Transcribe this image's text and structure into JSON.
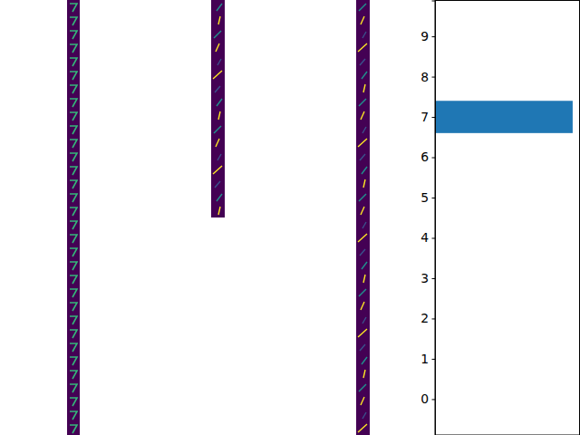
{
  "chart_data": {
    "type": "bar",
    "orientation": "horizontal",
    "categories": [
      0,
      1,
      2,
      3,
      4,
      5,
      6,
      7,
      8,
      9
    ],
    "values": [
      0,
      0,
      0,
      0,
      0,
      0,
      0,
      1,
      0,
      0
    ],
    "color": "#1f77b4",
    "xlim": [
      0,
      1.05
    ],
    "ylim": [
      -0.89,
      9.89
    ],
    "yticks": [
      0,
      1,
      2,
      3,
      4,
      5,
      6,
      7,
      8,
      9
    ],
    "tick_labels": "y",
    "grid": false
  }
}
